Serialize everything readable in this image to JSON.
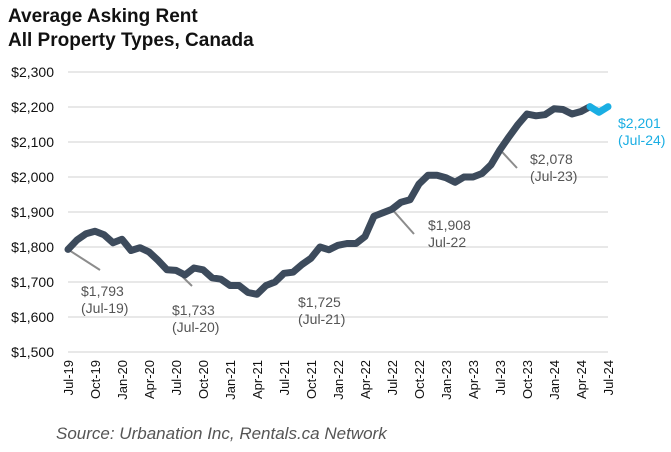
{
  "chart_data": {
    "type": "line",
    "title": "Average Asking Rent",
    "subtitle": "All Property Types, Canada",
    "source": "Source: Urbanation Inc, Rentals.ca Network",
    "xlabel": "",
    "ylabel": "",
    "ylim": [
      1500,
      2300
    ],
    "yticks": [
      "$1,500",
      "$1,600",
      "$1,700",
      "$1,800",
      "$1,900",
      "$2,000",
      "$2,100",
      "$2,200",
      "$2,300"
    ],
    "xticks": [
      "Jul-19",
      "Oct-19",
      "Jan-20",
      "Apr-20",
      "Jul-20",
      "Oct-20",
      "Jan-21",
      "Apr-21",
      "Jul-21",
      "Oct-21",
      "Jan-22",
      "Apr-22",
      "Jul-22",
      "Oct-22",
      "Jan-23",
      "Apr-23",
      "Jul-23",
      "Oct-23",
      "Jan-24",
      "Apr-24",
      "Jul-24"
    ],
    "grid": true,
    "series": [
      {
        "color": "#3d4b5c",
        "highlight_color": "#1aaee3",
        "x": [
          "Jul-19",
          "Aug-19",
          "Sep-19",
          "Oct-19",
          "Nov-19",
          "Dec-19",
          "Jan-20",
          "Feb-20",
          "Mar-20",
          "Apr-20",
          "May-20",
          "Jun-20",
          "Jul-20",
          "Aug-20",
          "Sep-20",
          "Oct-20",
          "Nov-20",
          "Dec-20",
          "Jan-21",
          "Feb-21",
          "Mar-21",
          "Apr-21",
          "May-21",
          "Jun-21",
          "Jul-21",
          "Aug-21",
          "Sep-21",
          "Oct-21",
          "Nov-21",
          "Dec-21",
          "Jan-22",
          "Feb-22",
          "Mar-22",
          "Apr-22",
          "May-22",
          "Jun-22",
          "Jul-22",
          "Aug-22",
          "Sep-22",
          "Oct-22",
          "Nov-22",
          "Dec-22",
          "Jan-23",
          "Feb-23",
          "Mar-23",
          "Apr-23",
          "May-23",
          "Jun-23",
          "Jul-23",
          "Aug-23",
          "Sep-23",
          "Oct-23",
          "Nov-23",
          "Dec-23",
          "Jan-24",
          "Feb-24",
          "Mar-24",
          "Apr-24",
          "May-24",
          "Jun-24",
          "Jul-24"
        ],
        "values": [
          1793,
          1820,
          1838,
          1845,
          1835,
          1812,
          1822,
          1790,
          1798,
          1786,
          1762,
          1735,
          1733,
          1720,
          1740,
          1735,
          1712,
          1708,
          1690,
          1690,
          1670,
          1665,
          1690,
          1700,
          1725,
          1728,
          1750,
          1768,
          1800,
          1792,
          1805,
          1810,
          1810,
          1830,
          1888,
          1898,
          1908,
          1928,
          1935,
          1980,
          2005,
          2005,
          1998,
          1985,
          2000,
          2000,
          2010,
          2035,
          2078,
          2115,
          2150,
          2180,
          2175,
          2178,
          2195,
          2193,
          2180,
          2187,
          2201,
          2185,
          2201
        ]
      }
    ],
    "annotations": [
      {
        "line1": "$1,793",
        "line2": "(Jul-19)",
        "x": "Jul-19",
        "color": "#555555"
      },
      {
        "line1": "$1,733",
        "line2": "(Jul-20)",
        "x": "Jul-20",
        "color": "#555555"
      },
      {
        "line1": "$1,725",
        "line2": "(Jul-21)",
        "x": "Jul-21",
        "color": "#555555"
      },
      {
        "line1": "$1,908",
        "line2": "Jul-22",
        "x": "Jul-22",
        "color": "#555555"
      },
      {
        "line1": "$2,078",
        "line2": "(Jul-23)",
        "x": "Jul-23",
        "color": "#555555"
      },
      {
        "line1": "$2,201",
        "line2": "(Jul-24)",
        "x": "Jul-24",
        "color": "#1aaee3"
      }
    ]
  }
}
